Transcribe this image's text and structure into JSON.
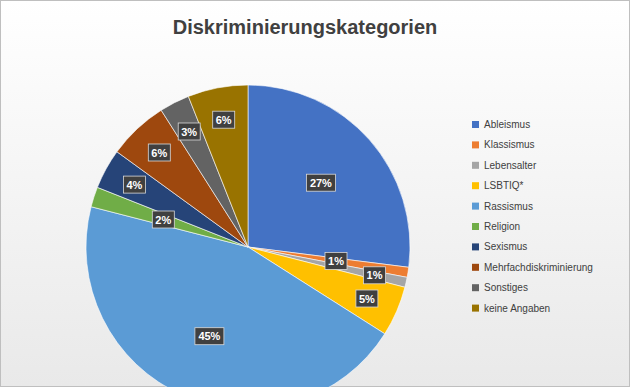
{
  "chart_data": {
    "type": "pie",
    "title": "Diskriminierungskategorien",
    "categories": [
      "Ableismus",
      "Klassismus",
      "Lebensalter",
      "LSBTIQ*",
      "Rassismus",
      "Religion",
      "Sexismus",
      "Mehrfachdiskriminierung",
      "Sonstiges",
      "keine Angaben"
    ],
    "values": [
      27,
      1,
      1,
      5,
      45,
      2,
      4,
      6,
      3,
      6
    ],
    "value_labels": [
      "27%",
      "1%",
      "1%",
      "5%",
      "45%",
      "2%",
      "4%",
      "6%",
      "3%",
      "6%"
    ],
    "colors": [
      "#4472c4",
      "#ed7d31",
      "#a5a5a5",
      "#ffc000",
      "#5b9bd5",
      "#70ad47",
      "#264478",
      "#9e480e",
      "#636363",
      "#997300"
    ],
    "data_labels": true,
    "legend": "right"
  }
}
